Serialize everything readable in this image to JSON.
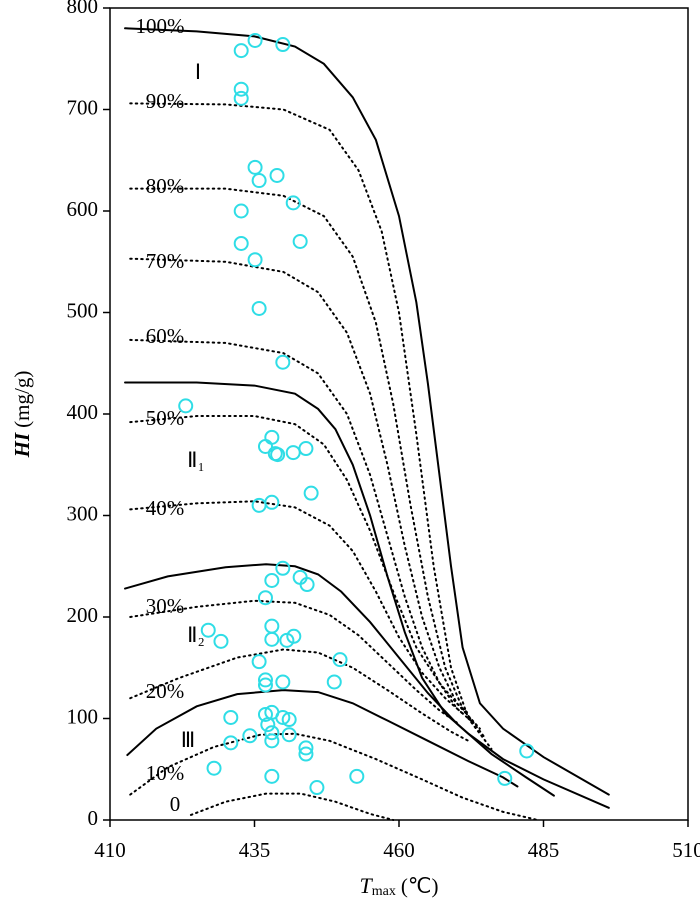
{
  "chart_data": {
    "type": "scatter",
    "x_label": {
      "var": "T",
      "sub": "max",
      "unit": "(℃)"
    },
    "y_label": {
      "var": "HI",
      "unit": "(mg/g)"
    },
    "xlim": [
      410,
      510
    ],
    "xticks": [
      410,
      435,
      460,
      485,
      510
    ],
    "ylim": [
      0,
      800
    ],
    "yticks": [
      0,
      100,
      200,
      300,
      400,
      500,
      600,
      700,
      800
    ],
    "series": [
      {
        "color": "#2fdde6",
        "x": [
          432.7,
          435.1,
          439.9,
          432.7,
          432.7,
          435.1,
          438.9,
          435.8,
          441.7,
          432.7,
          442.9,
          432.7,
          435.1,
          435.8,
          439.9,
          423.1,
          438.0,
          436.9,
          438.6,
          439.0,
          441.7,
          443.9,
          438.0,
          435.8,
          444.8,
          439.9,
          438.0,
          442.9,
          444.1,
          436.9,
          427.0,
          429.2,
          438.0,
          438.0,
          440.6,
          441.8,
          435.8,
          449.8,
          436.9,
          436.9,
          439.9,
          448.8,
          430.9,
          436.9,
          438.0,
          439.9,
          441.0,
          437.3,
          438.0,
          434.2,
          441.0,
          430.9,
          438.0,
          443.9,
          443.9,
          428.0,
          438.0,
          452.7,
          445.8,
          482.1,
          478.3
        ],
        "values": [
          758,
          768,
          764,
          720,
          711,
          643,
          635,
          630,
          608,
          600,
          570,
          568,
          552,
          504,
          451,
          408,
          377,
          368,
          361,
          360,
          362,
          366,
          313,
          310,
          322,
          248,
          236,
          239,
          232,
          219,
          187,
          176,
          191,
          178,
          177,
          181,
          156,
          158,
          138,
          133,
          136,
          136,
          101,
          104,
          106,
          101,
          99,
          94,
          86,
          83,
          84,
          76,
          78,
          71,
          65,
          51,
          43,
          43,
          32,
          68,
          41
        ]
      }
    ],
    "curves": [
      {
        "label": "100%",
        "style": "solid",
        "x": [
          412.6,
          425,
          435,
          442,
          447,
          452,
          456,
          460,
          463,
          465,
          467,
          469,
          471,
          474,
          478,
          485,
          496.3
        ],
        "values": [
          780,
          777,
          772,
          762,
          745,
          712,
          670,
          595,
          510,
          430,
          340,
          250,
          170,
          115,
          90,
          62,
          25
        ]
      },
      {
        "label": "90%",
        "style": "dotted",
        "x": [
          413.5,
          430,
          440,
          448,
          453,
          457,
          460,
          463,
          466,
          469,
          472,
          476
        ],
        "values": [
          706,
          705,
          700,
          680,
          640,
          580,
          500,
          380,
          250,
          150,
          100,
          70
        ]
      },
      {
        "label": "80%",
        "style": "dotted",
        "x": [
          413.5,
          430,
          440,
          447,
          452,
          456,
          459,
          462,
          465,
          468,
          471,
          475
        ],
        "values": [
          622,
          622,
          615,
          595,
          555,
          490,
          410,
          310,
          220,
          150,
          110,
          80
        ]
      },
      {
        "label": "70%",
        "style": "dotted",
        "x": [
          413.5,
          430,
          440,
          446,
          451,
          455,
          458,
          461,
          464,
          467,
          470,
          474
        ],
        "values": [
          553,
          550,
          540,
          520,
          480,
          420,
          350,
          270,
          200,
          150,
          115,
          90
        ]
      },
      {
        "label": "60%",
        "style": "dotted",
        "x": [
          413.5,
          430,
          440,
          446,
          451,
          455,
          458,
          461,
          464,
          467,
          470,
          473
        ],
        "values": [
          473,
          470,
          460,
          440,
          400,
          340,
          280,
          220,
          170,
          135,
          110,
          95
        ]
      },
      {
        "style": "solid",
        "x": [
          412.6,
          425,
          435,
          442,
          446,
          449,
          452,
          455,
          458,
          461,
          464,
          468,
          472,
          478,
          485,
          496.3
        ],
        "values": [
          431,
          431,
          428,
          420,
          405,
          385,
          350,
          300,
          240,
          185,
          140,
          105,
          85,
          60,
          40,
          12
        ]
      },
      {
        "label": "50%",
        "style": "dotted",
        "x": [
          413.5,
          425,
          435,
          442,
          447,
          451,
          455,
          459,
          463,
          467,
          470,
          472
        ],
        "values": [
          392,
          398,
          398,
          390,
          370,
          335,
          285,
          225,
          170,
          135,
          115,
          105
        ]
      },
      {
        "label": "40%",
        "style": "dotted",
        "x": [
          413.5,
          425,
          435,
          442,
          448,
          452,
          456,
          460,
          464,
          468,
          471
        ],
        "values": [
          306,
          312,
          314,
          308,
          290,
          265,
          225,
          180,
          145,
          120,
          105
        ]
      },
      {
        "style": "solid",
        "x": [
          412.6,
          420,
          430,
          437,
          442,
          446,
          450,
          455,
          460,
          465,
          470,
          476,
          482,
          486.8
        ],
        "values": [
          228,
          240,
          249,
          252,
          250,
          242,
          225,
          195,
          160,
          125,
          95,
          65,
          42,
          24
        ]
      },
      {
        "label": "30%",
        "style": "dotted",
        "x": [
          413.5,
          425,
          435,
          442,
          448,
          453,
          458,
          463,
          467,
          470
        ],
        "values": [
          200,
          210,
          216,
          214,
          202,
          182,
          155,
          128,
          108,
          96
        ]
      },
      {
        "label": "20%",
        "style": "dotted",
        "x": [
          413.5,
          422,
          432,
          440,
          446,
          452,
          458,
          464,
          469,
          472
        ],
        "values": [
          120,
          140,
          160,
          168,
          165,
          150,
          128,
          105,
          87,
          78
        ]
      },
      {
        "style": "solid",
        "x": [
          413,
          418,
          425,
          432,
          440,
          446,
          452,
          458,
          465,
          472,
          478,
          480.5
        ],
        "values": [
          64,
          90,
          112,
          124,
          128,
          126,
          115,
          98,
          78,
          58,
          42,
          33
        ]
      },
      {
        "label": "10%",
        "style": "dotted",
        "x": [
          413.5,
          420,
          428,
          436,
          442,
          448,
          456,
          464,
          471,
          478,
          484
        ],
        "values": [
          25,
          52,
          72,
          84,
          85,
          78,
          60,
          40,
          22,
          8,
          0
        ]
      },
      {
        "label": "0",
        "style": "dotted",
        "x": [
          424,
          430,
          437,
          443,
          449,
          455,
          459
        ],
        "values": [
          5,
          18,
          26,
          26,
          18,
          6,
          0
        ]
      }
    ],
    "regions": [
      "Ⅰ",
      "Ⅱ₁",
      "Ⅱ₂",
      "Ⅲ"
    ]
  }
}
